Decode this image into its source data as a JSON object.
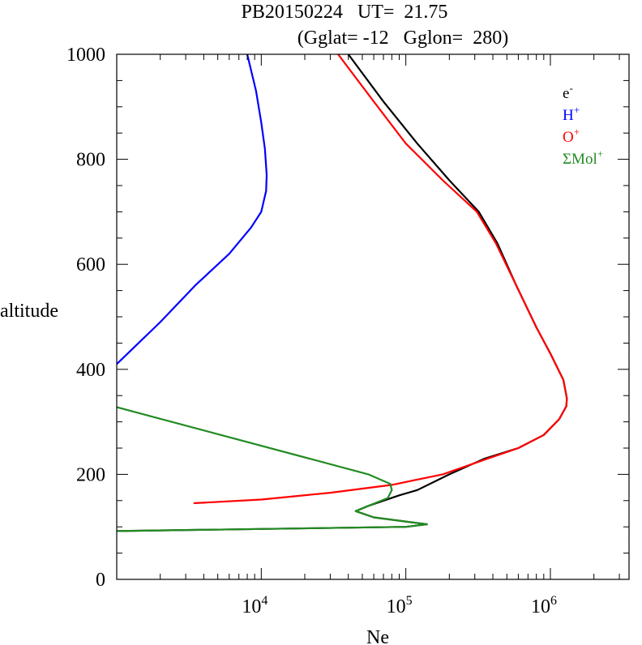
{
  "chart_data": {
    "type": "line",
    "title_line1": "PB20150224   UT=  21.75",
    "title_line2": "(Gglat= -12   Gglon=  280)",
    "xlabel": "Ne",
    "ylabel": "altitude",
    "x_scale": "log",
    "xlim": [
      1000,
      3500000
    ],
    "ylim": [
      0,
      1000
    ],
    "x_ticks": [
      {
        "value": 10000,
        "base": "10",
        "exp": "4"
      },
      {
        "value": 100000,
        "base": "10",
        "exp": "5"
      },
      {
        "value": 1000000,
        "base": "10",
        "exp": "6"
      }
    ],
    "y_ticks": [
      {
        "value": 0,
        "label": "0"
      },
      {
        "value": 200,
        "label": "200"
      },
      {
        "value": 400,
        "label": "400"
      },
      {
        "value": 600,
        "label": "600"
      },
      {
        "value": 800,
        "label": "800"
      },
      {
        "value": 1000,
        "label": "1000"
      }
    ],
    "grid": false,
    "legend_position": "top-right",
    "series": [
      {
        "name": "e",
        "sup": "-",
        "color": "#000000",
        "points": [
          [
            1000,
            92
          ],
          [
            100000,
            100
          ],
          [
            140000,
            105
          ],
          [
            60000,
            118
          ],
          [
            45000,
            130
          ],
          [
            55000,
            140
          ],
          [
            90000,
            160
          ],
          [
            120000,
            170
          ],
          [
            200000,
            200
          ],
          [
            350000,
            230
          ],
          [
            600000,
            250
          ],
          [
            900000,
            275
          ],
          [
            1150000,
            305
          ],
          [
            1290000,
            330
          ],
          [
            1300000,
            345
          ],
          [
            1230000,
            380
          ],
          [
            1000000,
            430
          ],
          [
            800000,
            480
          ],
          [
            580000,
            560
          ],
          [
            430000,
            640
          ],
          [
            320000,
            700
          ],
          [
            200000,
            760
          ],
          [
            120000,
            830
          ],
          [
            70000,
            910
          ],
          [
            40000,
            1000
          ]
        ]
      },
      {
        "name": "H",
        "sup": "+",
        "color": "#0000ff",
        "points": [
          [
            1000,
            410
          ],
          [
            2000,
            490
          ],
          [
            3500,
            560
          ],
          [
            6000,
            620
          ],
          [
            8500,
            670
          ],
          [
            10000,
            700
          ],
          [
            10800,
            740
          ],
          [
            10900,
            770
          ],
          [
            10600,
            820
          ],
          [
            10000,
            870
          ],
          [
            9200,
            930
          ],
          [
            8000,
            1000
          ]
        ]
      },
      {
        "name": "O",
        "sup": "+",
        "color": "#ff0000",
        "points": [
          [
            3400,
            145
          ],
          [
            10000,
            152
          ],
          [
            30000,
            165
          ],
          [
            80000,
            180
          ],
          [
            180000,
            200
          ],
          [
            350000,
            228
          ],
          [
            600000,
            250
          ],
          [
            900000,
            275
          ],
          [
            1150000,
            305
          ],
          [
            1290000,
            330
          ],
          [
            1300000,
            345
          ],
          [
            1230000,
            380
          ],
          [
            1000000,
            430
          ],
          [
            800000,
            480
          ],
          [
            580000,
            560
          ],
          [
            420000,
            640
          ],
          [
            310000,
            700
          ],
          [
            180000,
            760
          ],
          [
            100000,
            830
          ],
          [
            60000,
            910
          ],
          [
            34000,
            1000
          ]
        ]
      },
      {
        "name": "ΣMol",
        "sup": "+",
        "color": "#228b22",
        "points": [
          [
            1000,
            92
          ],
          [
            100000,
            100
          ],
          [
            140000,
            105
          ],
          [
            60000,
            118
          ],
          [
            45000,
            130
          ],
          [
            55000,
            140
          ],
          [
            75000,
            155
          ],
          [
            80000,
            170
          ],
          [
            78000,
            182
          ],
          [
            55000,
            200
          ],
          [
            1000,
            328
          ]
        ]
      }
    ]
  }
}
